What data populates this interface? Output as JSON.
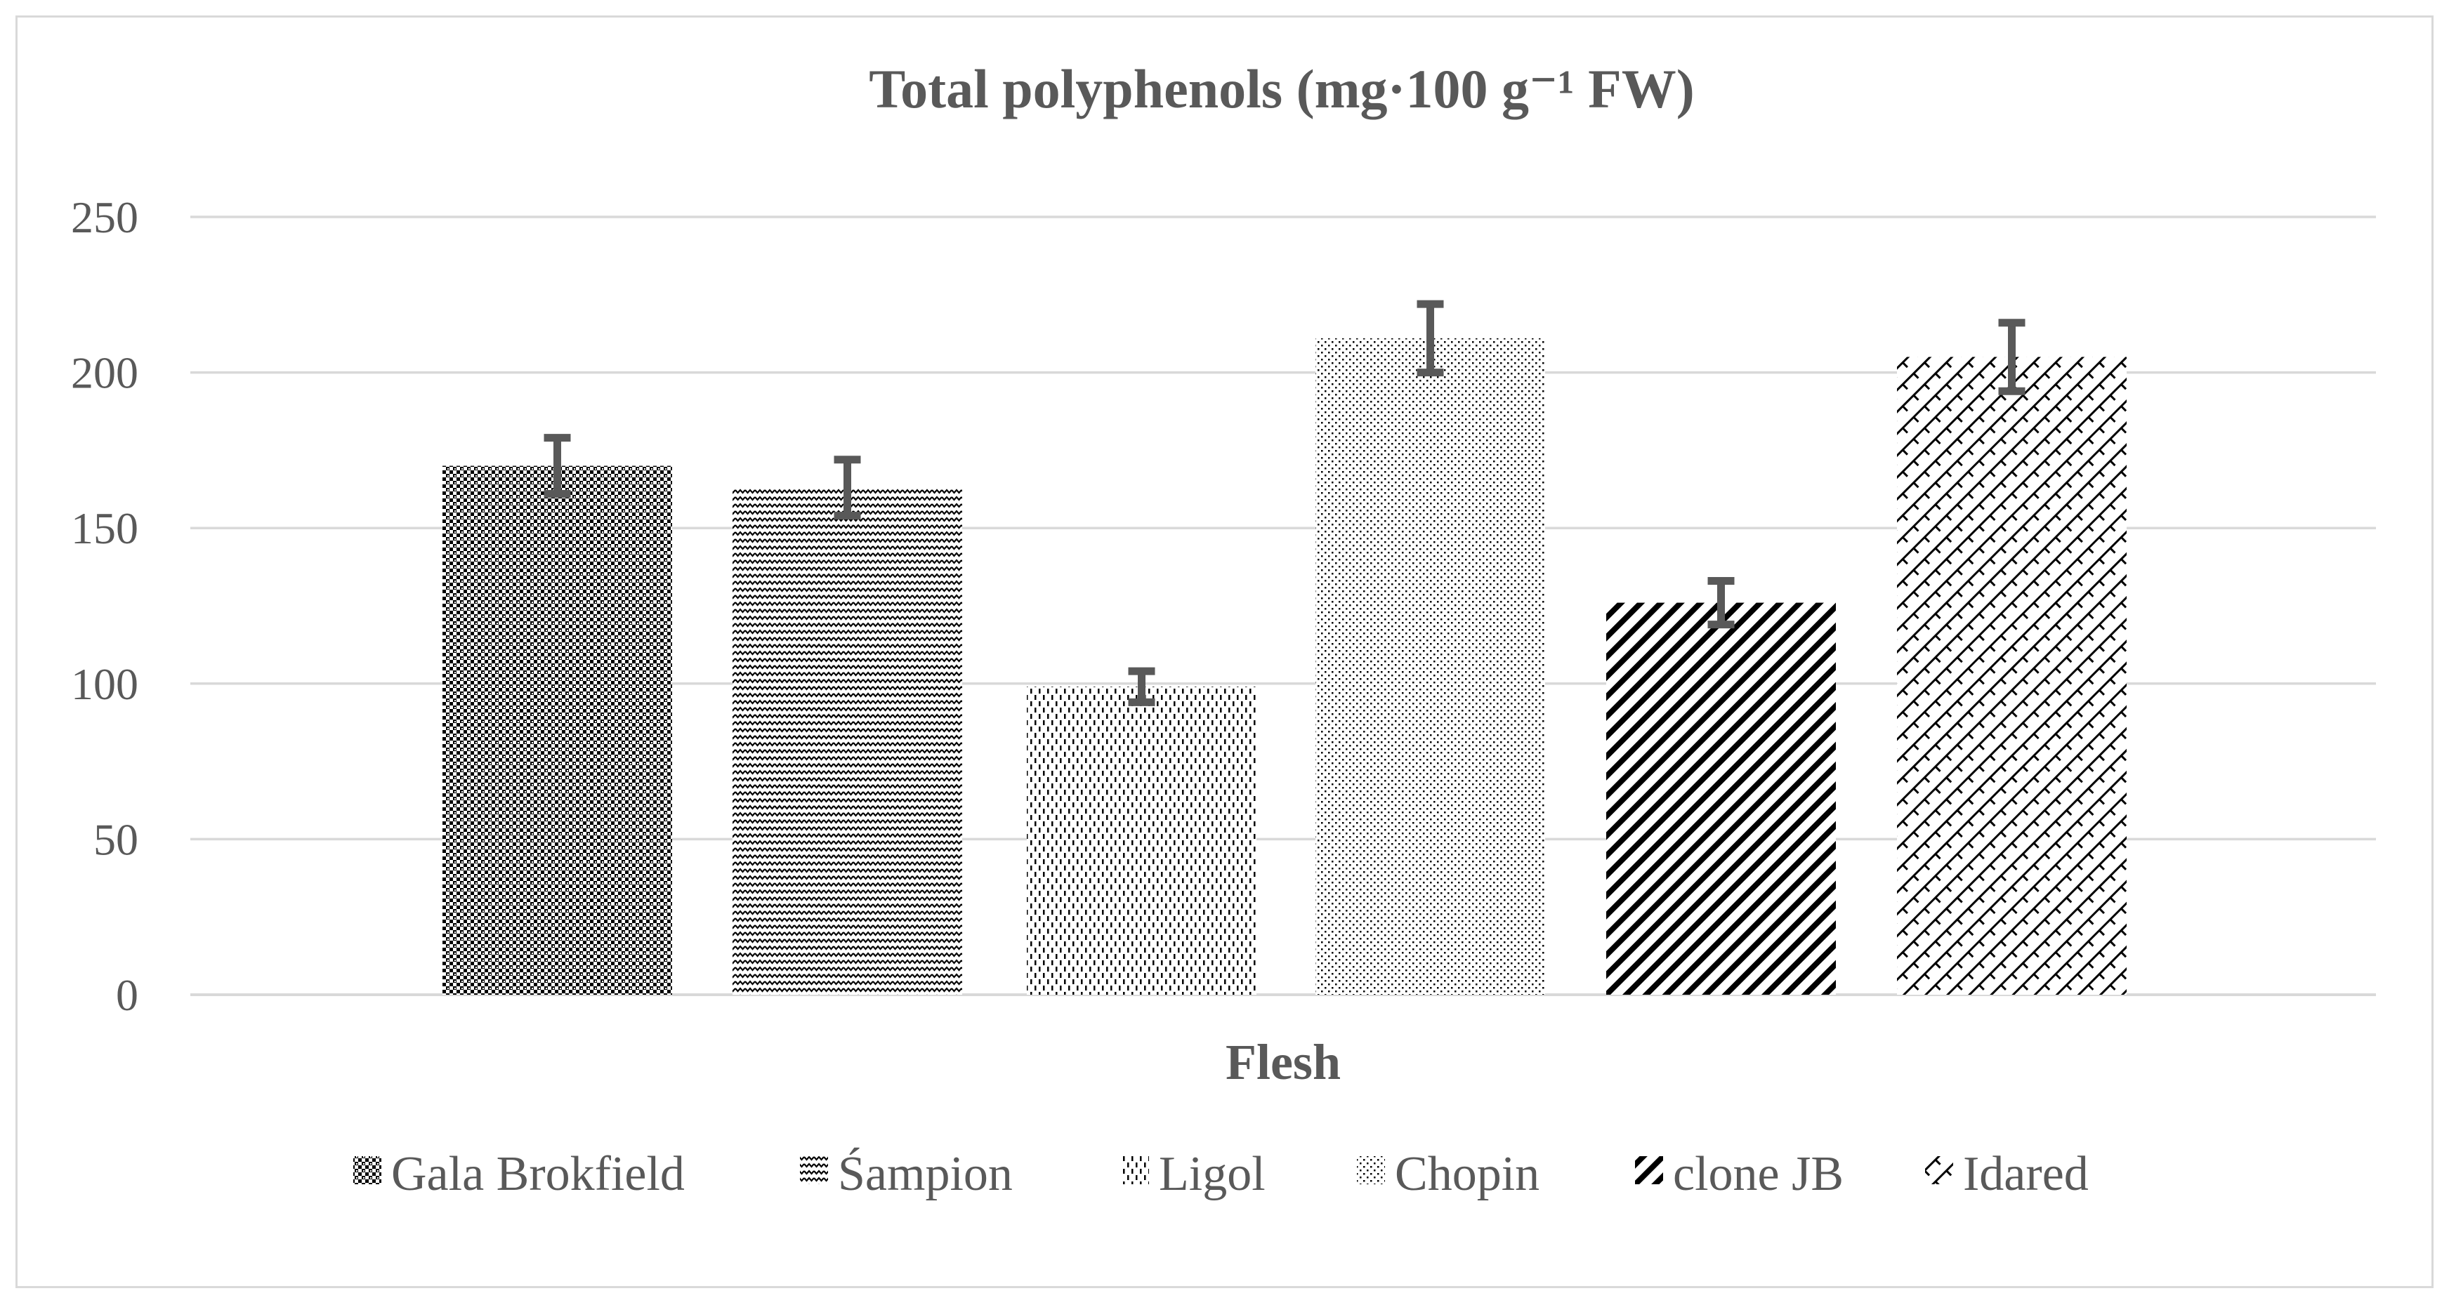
{
  "chart_data": {
    "type": "bar",
    "title": "Total polyphenols (mg·100 g⁻¹ FW)",
    "xlabel": "Flesh",
    "ylabel": "",
    "ylim": [
      0,
      250
    ],
    "yticks": [
      0,
      50,
      100,
      150,
      200,
      250
    ],
    "grid": true,
    "legend_position": "bottom",
    "categories": [
      "Flesh"
    ],
    "series": [
      {
        "name": "Gala Brokfield",
        "values": [
          170
        ],
        "error": [
          9
        ],
        "pattern": "dots-dense"
      },
      {
        "name": "Śampion",
        "values": [
          163
        ],
        "error": [
          9
        ],
        "pattern": "zigzag"
      },
      {
        "name": "Ligol",
        "values": [
          99
        ],
        "error": [
          5
        ],
        "pattern": "dashes"
      },
      {
        "name": "Chopin",
        "values": [
          211
        ],
        "error": [
          11
        ],
        "pattern": "dots-sparse"
      },
      {
        "name": "clone JB",
        "values": [
          126
        ],
        "error": [
          7
        ],
        "pattern": "diagonal"
      },
      {
        "name": "Idared",
        "values": [
          205
        ],
        "error": [
          11
        ],
        "pattern": "crosshatch"
      }
    ],
    "colors": {
      "grid": "#d9d9d9",
      "text": "#595959",
      "errorbar": "#595959",
      "pattern": "#000000"
    }
  }
}
